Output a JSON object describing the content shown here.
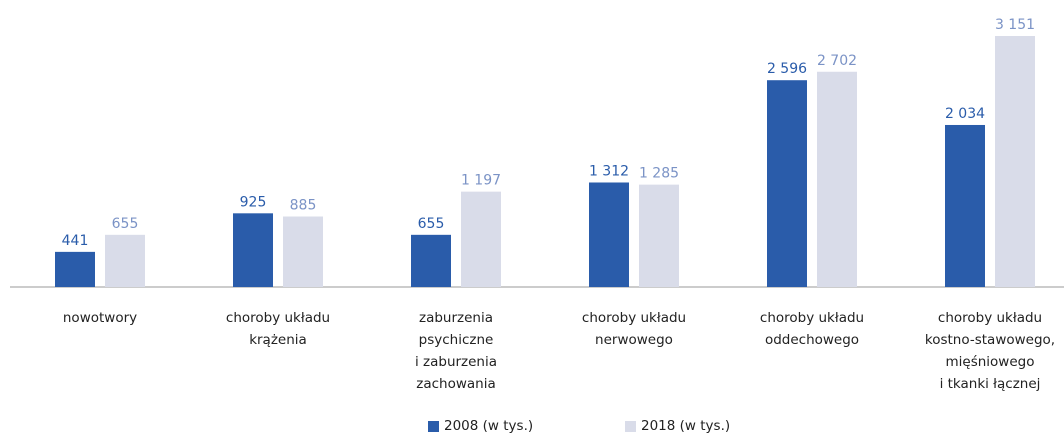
{
  "chart_data": {
    "type": "bar",
    "categories": [
      "nowotwory",
      "choroby układu\nkrążenia",
      "zaburzenia\npsychiczne\ni zaburzenia\nzachowania",
      "choroby układu\nnerwowego",
      "choroby układu\noddechowego",
      "choroby układu\nkostno-stawowego,\nmięśniowego\ni tkanki łącznej"
    ],
    "series": [
      {
        "name": "2008 (w tys.)",
        "color": "#2a5caa",
        "label_color": "#2a5caa",
        "values": [
          441,
          925,
          655,
          1312,
          2596,
          2034
        ],
        "value_labels": [
          "441",
          "925",
          "655",
          "1 312",
          "2 596",
          "2 034"
        ]
      },
      {
        "name": "2018 (w tys.)",
        "color": "#d9dce9",
        "label_color": "#7b93c6",
        "values": [
          655,
          885,
          1197,
          1285,
          2702,
          3151
        ],
        "value_labels": [
          "655",
          "885",
          "1 197",
          "1 285",
          "2 702",
          "3 151"
        ]
      }
    ]
  }
}
